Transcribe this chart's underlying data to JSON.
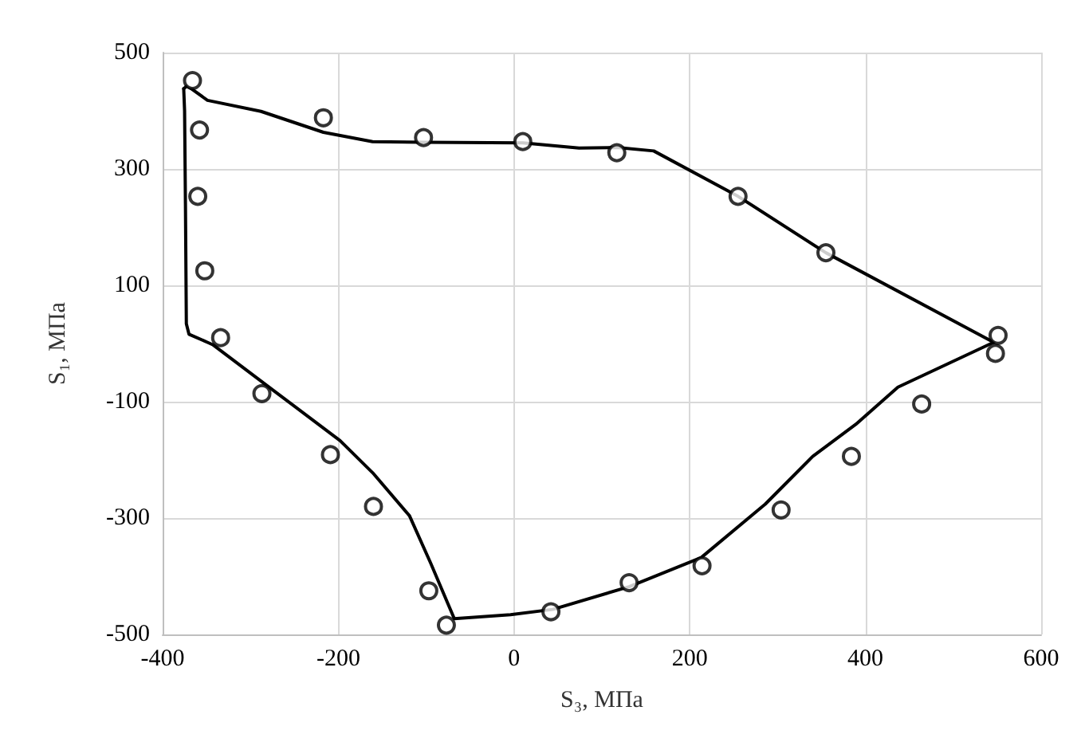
{
  "chart_data": {
    "type": "scatter",
    "xlabel": "S₃, МПа",
    "ylabel": "S₁, МПа",
    "xlim": [
      -400,
      600
    ],
    "xticks": [
      -400,
      -200,
      0,
      200,
      400,
      600
    ],
    "ylim": [
      -500,
      500
    ],
    "yticks": [
      -500,
      -300,
      -100,
      100,
      300,
      500
    ],
    "grid": true,
    "series": [
      {
        "type": "line",
        "color": "#000000",
        "marker": "none",
        "line_style": "solid",
        "x": [
          -376,
          -372,
          -349,
          -288,
          -217,
          -161,
          -103,
          10,
          74,
          117,
          159,
          255,
          355,
          546
        ],
        "values": [
          438,
          443,
          418,
          399,
          363,
          347,
          346,
          345,
          336,
          337,
          331,
          253,
          156,
          2
        ]
      },
      {
        "type": "line",
        "color": "#000000",
        "marker": "none",
        "line_style": "solid",
        "x": [
          -376,
          -375,
          -374,
          -373,
          -370,
          -349,
          -343,
          -270,
          -198,
          -161,
          -119,
          -95,
          -68,
          -4,
          44,
          131,
          213,
          286,
          340,
          389,
          437,
          546
        ],
        "values": [
          438,
          400,
          235,
          34,
          16,
          2,
          -2,
          -85,
          -167,
          -222,
          -296,
          -377,
          -473,
          -466,
          -457,
          -418,
          -368,
          -276,
          -194,
          -139,
          -75,
          2
        ]
      },
      {
        "color": "#000000",
        "marker": "circle",
        "x": [
          -366,
          -358,
          -360,
          -352,
          -334,
          -217,
          -103,
          10,
          117,
          255,
          355,
          551,
          548,
          -287,
          -209,
          -160,
          -97,
          -77,
          42,
          131,
          214,
          304,
          384,
          464
        ],
        "values": [
          452,
          367,
          253,
          125,
          10,
          388,
          354,
          347,
          328,
          253,
          156,
          14,
          -17,
          -86,
          -191,
          -280,
          -425,
          -484,
          -461,
          -411,
          -382,
          -286,
          -194,
          -104
        ]
      }
    ]
  }
}
